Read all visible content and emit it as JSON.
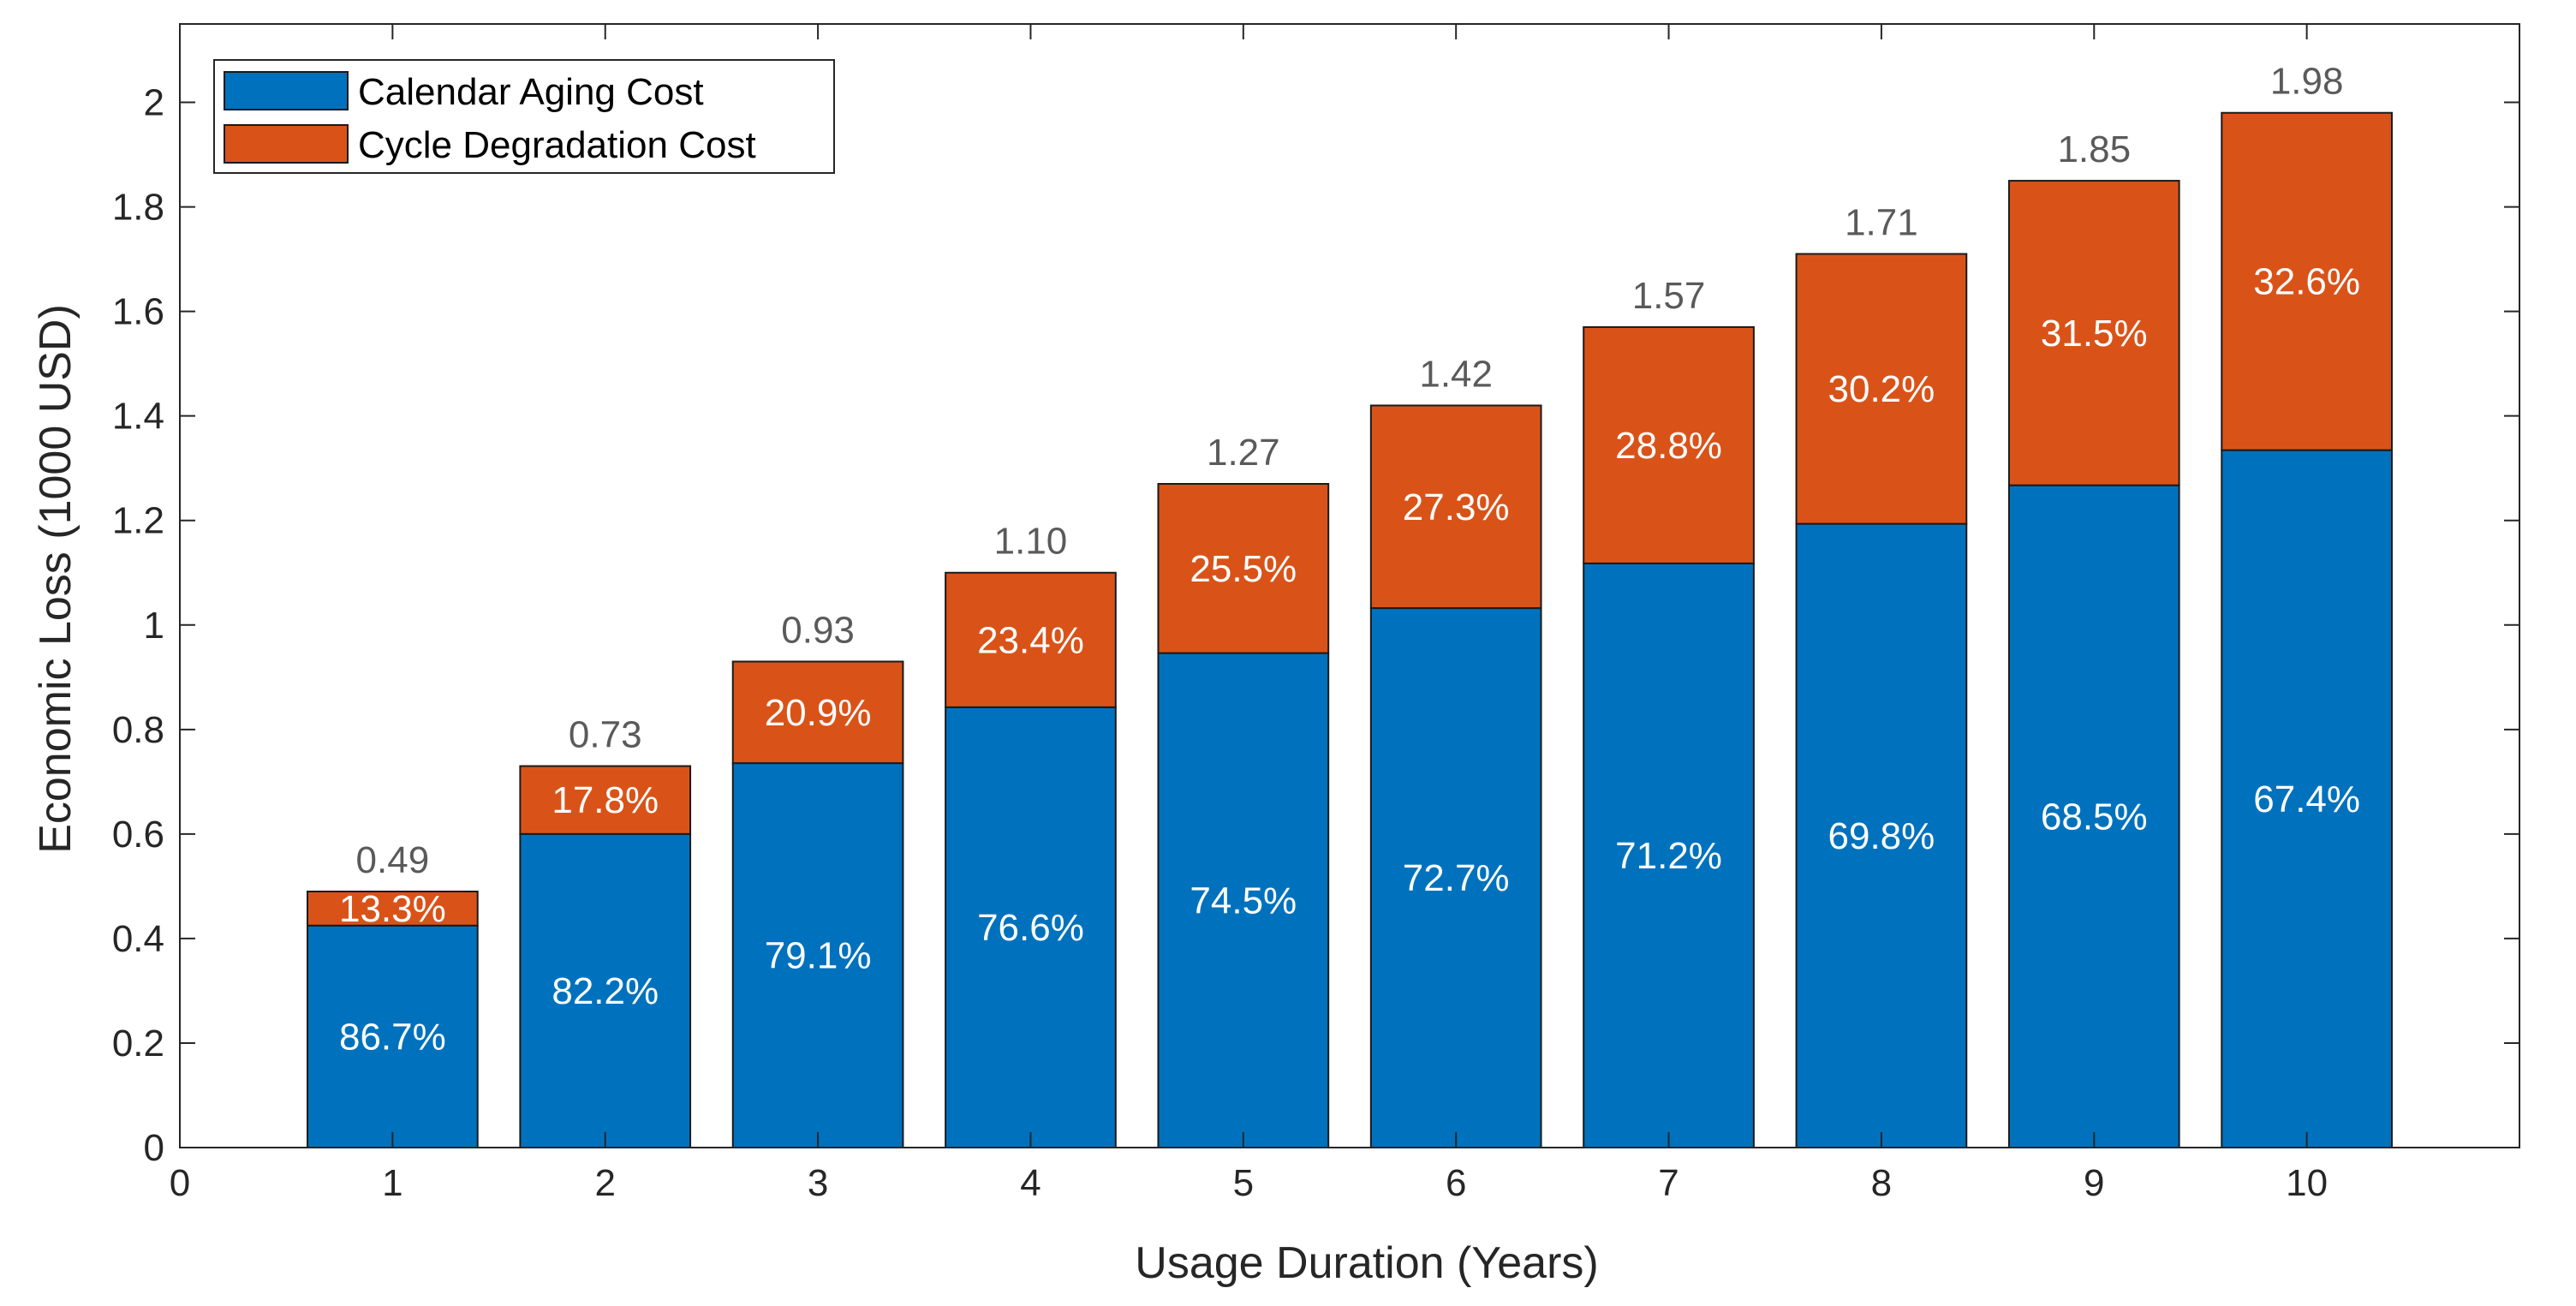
{
  "chart_data": {
    "type": "bar",
    "stacked": true,
    "xlabel": "Usage Duration (Years)",
    "ylabel": "Economic Loss (1000 USD)",
    "xlim": [
      0,
      11
    ],
    "ylim": [
      0,
      2.15
    ],
    "xticks": [
      "0",
      "1",
      "2",
      "3",
      "4",
      "5",
      "6",
      "7",
      "8",
      "9",
      "10"
    ],
    "yticks": [
      "0",
      "0.2",
      "0.4",
      "0.6",
      "0.8",
      "1",
      "1.2",
      "1.4",
      "1.6",
      "1.8",
      "2"
    ],
    "categories": [
      1,
      2,
      3,
      4,
      5,
      6,
      7,
      8,
      9,
      10
    ],
    "series": [
      {
        "name": "Calendar Aging Cost",
        "color": "#0072BD",
        "values": [
          0.4248,
          0.6001,
          0.7356,
          0.8426,
          0.9462,
          1.0323,
          1.1178,
          1.1936,
          1.2673,
          1.3345
        ],
        "labels": [
          "86.7%",
          "82.2%",
          "79.1%",
          "76.6%",
          "74.5%",
          "72.7%",
          "71.2%",
          "69.8%",
          "68.5%",
          "67.4%"
        ]
      },
      {
        "name": "Cycle Degradation Cost",
        "color": "#D95319",
        "values": [
          0.0652,
          0.1299,
          0.1944,
          0.2574,
          0.3238,
          0.3877,
          0.4522,
          0.5164,
          0.5827,
          0.6455
        ],
        "labels": [
          "13.3%",
          "17.8%",
          "20.9%",
          "23.4%",
          "25.5%",
          "27.3%",
          "28.8%",
          "30.2%",
          "31.5%",
          "32.6%"
        ]
      }
    ],
    "totals": [
      0.49,
      0.73,
      0.93,
      1.1,
      1.27,
      1.42,
      1.57,
      1.71,
      1.85,
      1.98
    ],
    "total_labels": [
      "0.49",
      "0.73",
      "0.93",
      "1.10",
      "1.27",
      "1.42",
      "1.57",
      "1.71",
      "1.85",
      "1.98"
    ],
    "legend_position": "top-left",
    "grid": false
  }
}
